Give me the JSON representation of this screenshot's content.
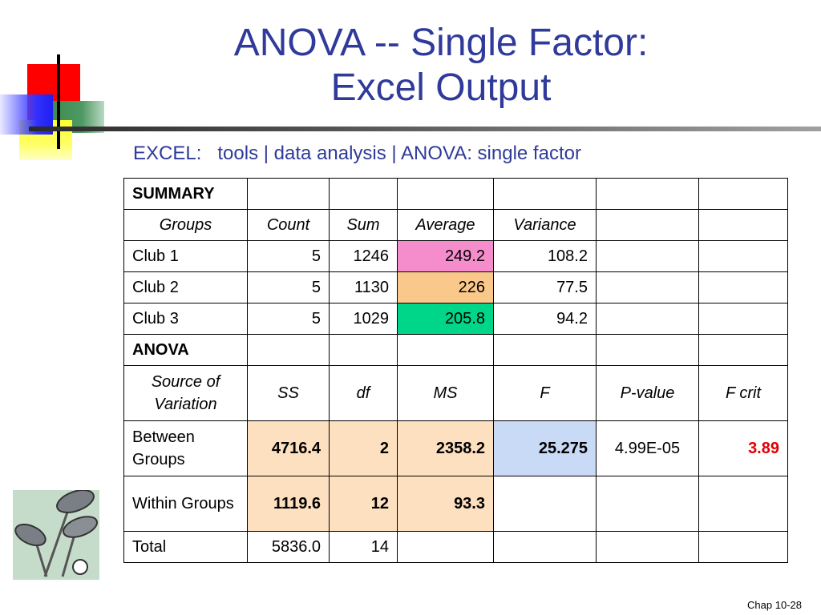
{
  "title_line1": "ANOVA -- Single Factor:",
  "title_line2": "Excel Output",
  "subtitle": "EXCEL:   tools | data analysis | ANOVA: single factor",
  "summary": {
    "heading": "SUMMARY",
    "columns": [
      "Groups",
      "Count",
      "Sum",
      "Average",
      "Variance"
    ],
    "rows": [
      {
        "group": "Club 1",
        "count": "5",
        "sum": "1246",
        "average": "249.2",
        "variance": "108.2"
      },
      {
        "group": "Club 2",
        "count": "5",
        "sum": "1130",
        "average": "226",
        "variance": "77.5"
      },
      {
        "group": "Club 3",
        "count": "5",
        "sum": "1029",
        "average": "205.8",
        "variance": "94.2"
      }
    ]
  },
  "anova": {
    "heading": "ANOVA",
    "columns": [
      "Source of Variation",
      "SS",
      "df",
      "MS",
      "F",
      "P-value",
      "F crit"
    ],
    "between": {
      "label": "Between Groups",
      "ss": "4716.4",
      "df": "2",
      "ms": "2358.2",
      "f": "25.275",
      "p": "4.99E-05",
      "fcrit": "3.89"
    },
    "within": {
      "label": "Within Groups",
      "ss": "1119.6",
      "df": "12",
      "ms": "93.3"
    },
    "total": {
      "label": "Total",
      "ss": "5836.0",
      "df": "14"
    }
  },
  "colors": {
    "title": "#2f3a9a",
    "avg_club1": "#f58ccb",
    "avg_club2": "#fbc88b",
    "avg_club3": "#00d68a",
    "highlight_tan": "#fde0c0",
    "highlight_f": "#c9daf6",
    "fcrit_text": "#e00000"
  },
  "footer": "Chap 10-28"
}
